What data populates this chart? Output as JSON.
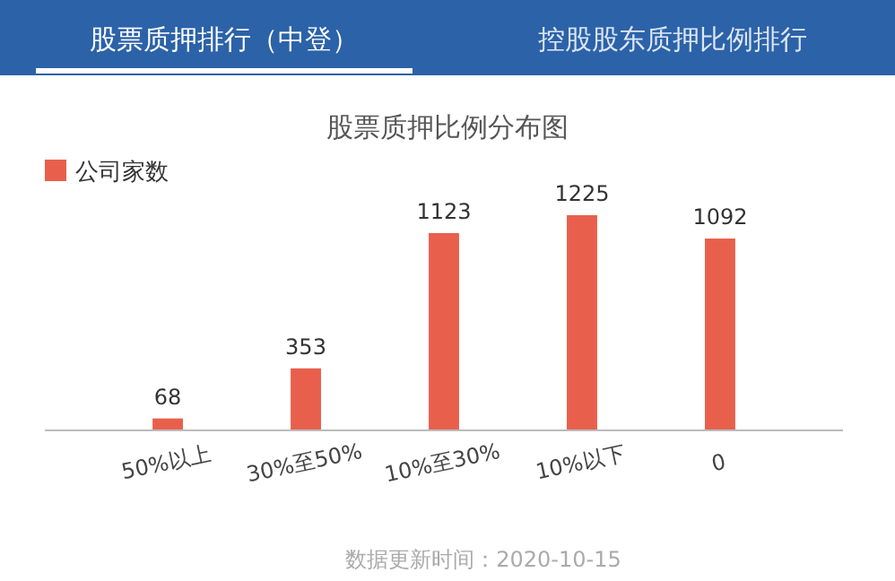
{
  "chart_data": {
    "type": "bar",
    "title": "股票质押比例分布图",
    "categories": [
      "50%以上",
      "30%至50%",
      "10%至30%",
      "10%以下",
      "0"
    ],
    "series": [
      {
        "name": "公司家数",
        "color": "#e8604c",
        "values": [
          68,
          353,
          1123,
          1225,
          1092
        ]
      }
    ],
    "data_labels": true,
    "legend": "top left",
    "grid": false,
    "annotations": [
      "股票质押排行（中登）",
      "控股股东质押比例排行",
      "数据更新时间：2020-10-15"
    ]
  }
}
